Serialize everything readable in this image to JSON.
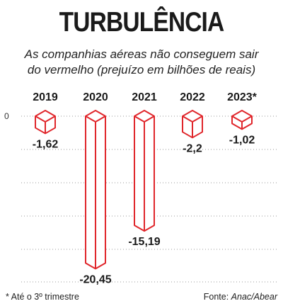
{
  "title": "TURBULÊNCIA",
  "subtitle_line1": "As companhias aéreas não conseguem sair",
  "subtitle_line2": "do vermelho (prejuízo em bilhões de reais)",
  "footnote": "* Até o 3º trimestre",
  "source_prefix": "Fonte: ",
  "source_name": "Anac/Abear",
  "colors": {
    "bar_stroke": "#e0262b",
    "bar_fill": "#ffffff",
    "grid": "#9a9a9a"
  },
  "chart_data": {
    "type": "bar",
    "title": "TURBULÊNCIA",
    "ylabel": "",
    "xlabel": "",
    "y_axis_labels": [
      "0"
    ],
    "categories": [
      "2019",
      "2020",
      "2021",
      "2022",
      "2023*"
    ],
    "values": [
      -1.62,
      -20.45,
      -15.19,
      -2.2,
      -1.02
    ],
    "value_labels": [
      "-1,62",
      "-20,45",
      "-15,19",
      "-2,2",
      "-1,02"
    ],
    "ylim": [
      -21,
      0
    ],
    "grid": true,
    "legend": "none"
  }
}
